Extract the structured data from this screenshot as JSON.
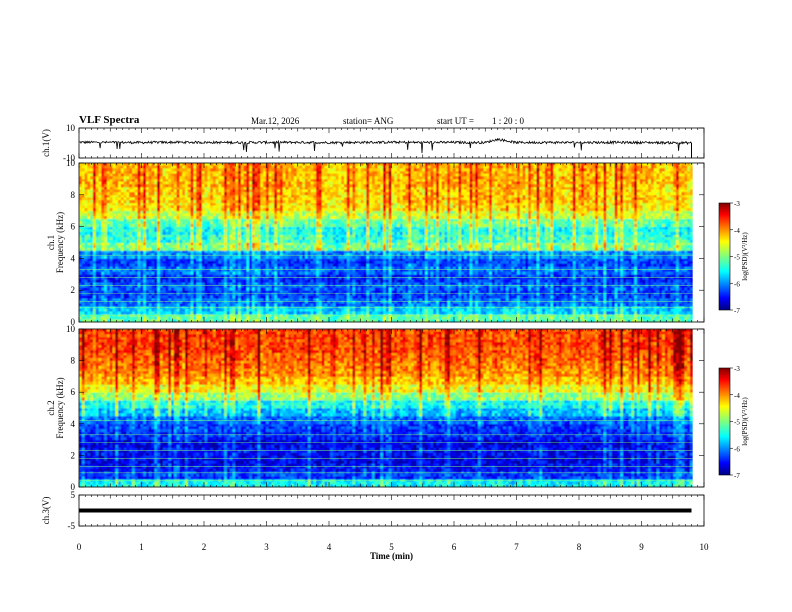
{
  "header": {
    "title": "VLF Spectra",
    "date": "Mar.12, 2026",
    "station": "station= ANG",
    "start_label": "start  UT =",
    "start_time": "1 : 20 : 0"
  },
  "chart_data": [
    {
      "id": "ch1_waveform",
      "type": "line",
      "ylabel": "ch.1(V)",
      "ylim": [
        -10,
        10
      ],
      "y_ticks": [
        "10",
        "-10"
      ],
      "xlim": [
        0,
        10
      ],
      "x": [
        0,
        0.5,
        1,
        1.5,
        2,
        2.5,
        3,
        3.5,
        4,
        4.5,
        5,
        5.5,
        6,
        6.5,
        6.7,
        7,
        7.5,
        8,
        8.5,
        9,
        9.5,
        9.8
      ],
      "values": [
        0.5,
        0.4,
        0.3,
        0.5,
        0.4,
        0.3,
        0.4,
        0.4,
        0.3,
        0.4,
        0.5,
        0.4,
        0.4,
        0.3,
        2.5,
        0.3,
        0.4,
        0.3,
        0.4,
        0.3,
        0.2,
        0.0
      ],
      "color": "#000000"
    },
    {
      "id": "ch1_spectrogram",
      "type": "heatmap",
      "ylabel": "ch.1\nFrequency (kHz)",
      "ylim": [
        0,
        10
      ],
      "y_ticks": [
        "0",
        "2",
        "4",
        "6",
        "8",
        "10"
      ],
      "xlim": [
        0,
        10
      ],
      "colorbar": {
        "label": "log(PSD)(V²/Hz)",
        "range": [
          -7,
          -3
        ],
        "ticks": [
          "-3",
          "-4",
          "-5",
          "-6",
          "-7"
        ]
      },
      "freq_bands_khz": [
        0,
        0.5,
        1,
        1.5,
        2,
        2.5,
        3,
        3.5,
        4,
        4.5,
        5,
        5.5,
        6,
        6.5,
        7,
        7.5,
        8,
        8.5,
        9,
        9.5,
        10
      ],
      "band_log_psd": [
        -5.3,
        -5.8,
        -6.2,
        -6.4,
        -6.3,
        -6.5,
        -6.2,
        -6.4,
        -6.1,
        -5.2,
        -5.5,
        -5.6,
        -5.3,
        -4.9,
        -4.6,
        -4.5,
        -4.5,
        -4.4,
        -4.4,
        -4.4
      ]
    },
    {
      "id": "ch2_spectrogram",
      "type": "heatmap",
      "ylabel": "ch.2\nFrequency (kHz)",
      "ylim": [
        0,
        10
      ],
      "y_ticks": [
        "0",
        "2",
        "4",
        "6",
        "8",
        "10"
      ],
      "xlim": [
        0,
        10
      ],
      "colorbar": {
        "label": "log(PSD)(V²/Hz)",
        "range": [
          -7,
          -3
        ],
        "ticks": [
          "-3",
          "-4",
          "-5",
          "-6",
          "-7"
        ]
      },
      "freq_bands_khz": [
        0,
        0.5,
        1,
        1.5,
        2,
        2.5,
        3,
        3.5,
        4,
        4.5,
        5,
        5.5,
        6,
        6.5,
        7,
        7.5,
        8,
        8.5,
        9,
        9.5,
        10
      ],
      "band_log_psd": [
        -5.6,
        -6.4,
        -6.6,
        -6.7,
        -6.6,
        -6.7,
        -6.5,
        -6.4,
        -6.2,
        -5.9,
        -5.6,
        -5.1,
        -4.7,
        -4.4,
        -4.2,
        -4.1,
        -4.0,
        -3.9,
        -3.9,
        -3.9
      ]
    },
    {
      "id": "ch3_waveform",
      "type": "line",
      "ylabel": "ch.3(V)",
      "ylim": [
        -5,
        5
      ],
      "y_ticks": [
        "5",
        "-5"
      ],
      "xlim": [
        0,
        10
      ],
      "x": [
        0,
        9.8
      ],
      "values": [
        0,
        0
      ],
      "xlabel": "Time (min)",
      "x_ticks": [
        "0",
        "1",
        "2",
        "3",
        "4",
        "5",
        "6",
        "7",
        "8",
        "9",
        "10"
      ],
      "color": "#000000"
    }
  ]
}
